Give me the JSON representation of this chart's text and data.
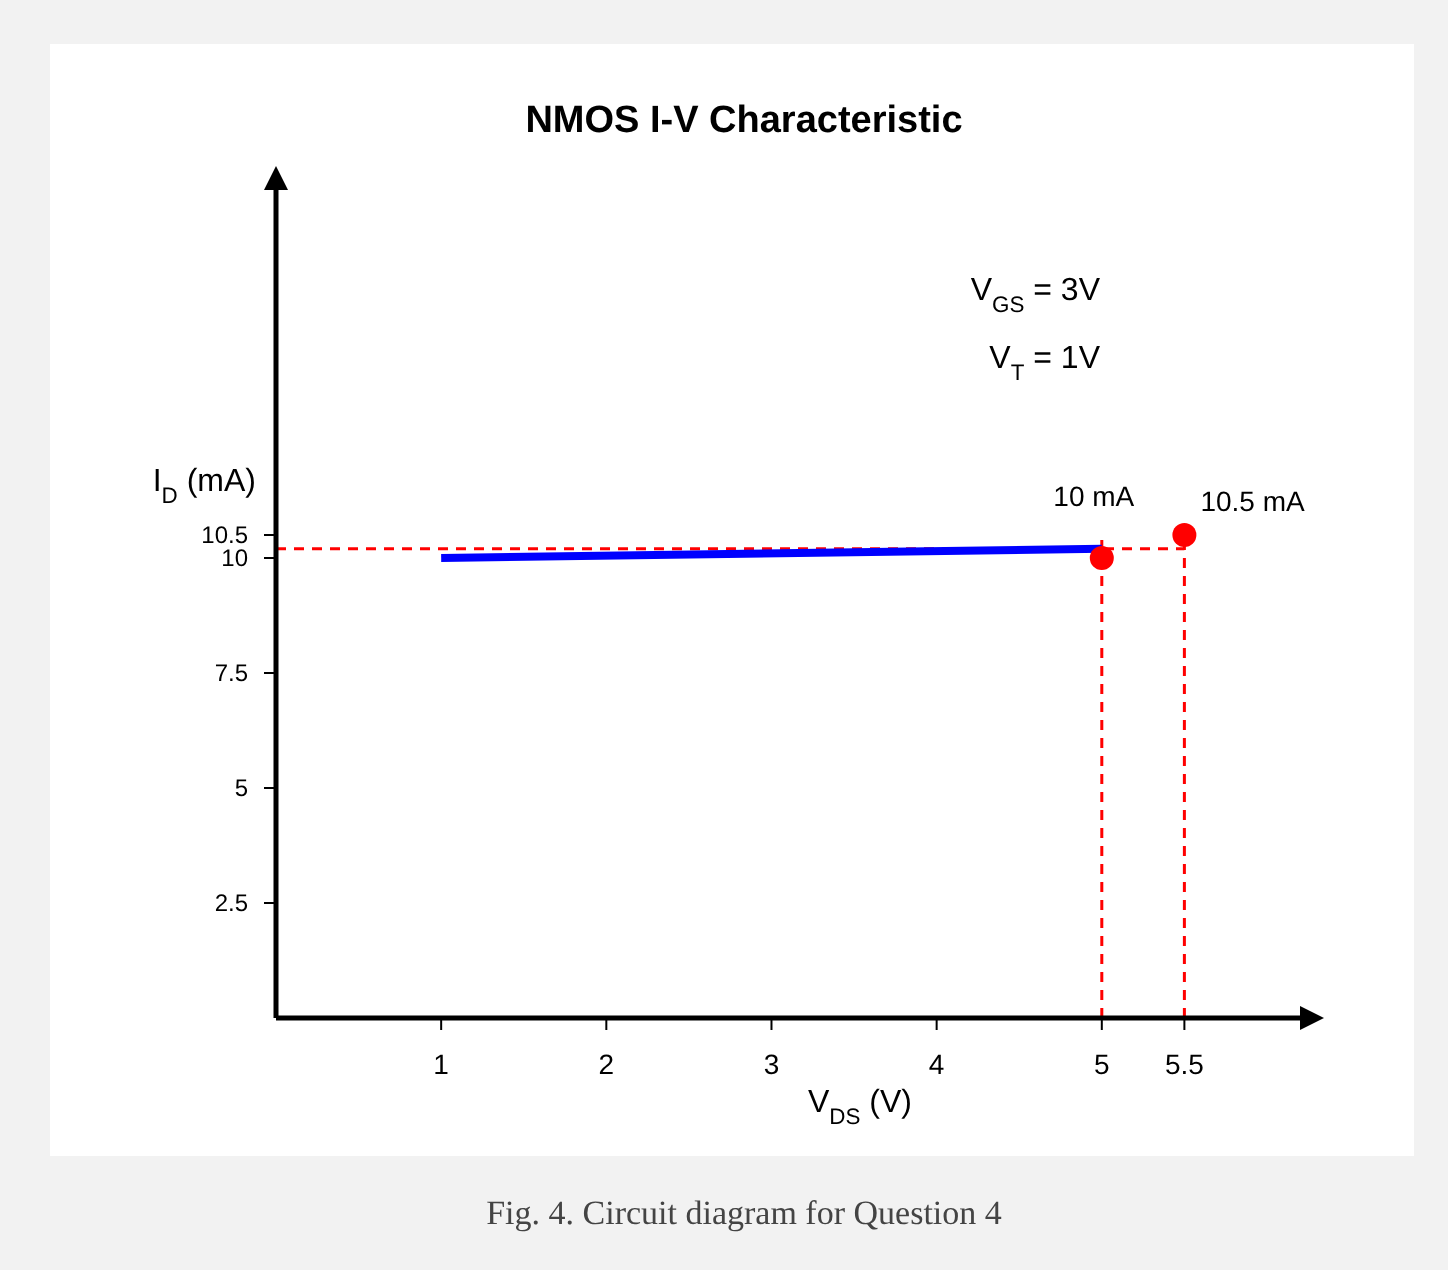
{
  "chart_data": {
    "type": "line",
    "title": "NMOS I-V Characteristic",
    "xlabel": "V$_{DS}$ (V)",
    "ylabel": "I$_{D}$ (mA)",
    "annotations": [
      "V$_{GS}$ = 3V",
      "V$_{T}$ = 1V",
      "Fig. 4. Circuit diagram for Question 4"
    ],
    "xlim": [
      0,
      6.2
    ],
    "ylim": [
      0,
      18
    ],
    "xticks": [
      1,
      2,
      3,
      4,
      5,
      5.5
    ],
    "yticks": [
      2.5,
      5,
      7.5,
      10,
      10.5
    ],
    "series": [
      {
        "type": "line",
        "color": "#0000ff",
        "x": [
          1,
          5
        ],
        "values": [
          10,
          10.2
        ]
      },
      {
        "type": "scatter",
        "color": "#ff0000",
        "marker": "circle",
        "x": [
          5,
          5.5
        ],
        "values": [
          10,
          10.5
        ],
        "value_labels": [
          "10 mA",
          "10.5 mA"
        ]
      }
    ],
    "ref_lines": [
      {
        "axis": "y",
        "value": 10.2,
        "color": "#ff0000",
        "line_style": "dashed"
      },
      {
        "axis": "x",
        "value": 5,
        "color": "#ff0000",
        "line_style": "dashed"
      },
      {
        "axis": "x",
        "value": 5.5,
        "color": "#ff0000",
        "line_style": "dashed"
      }
    ],
    "grid": false
  }
}
